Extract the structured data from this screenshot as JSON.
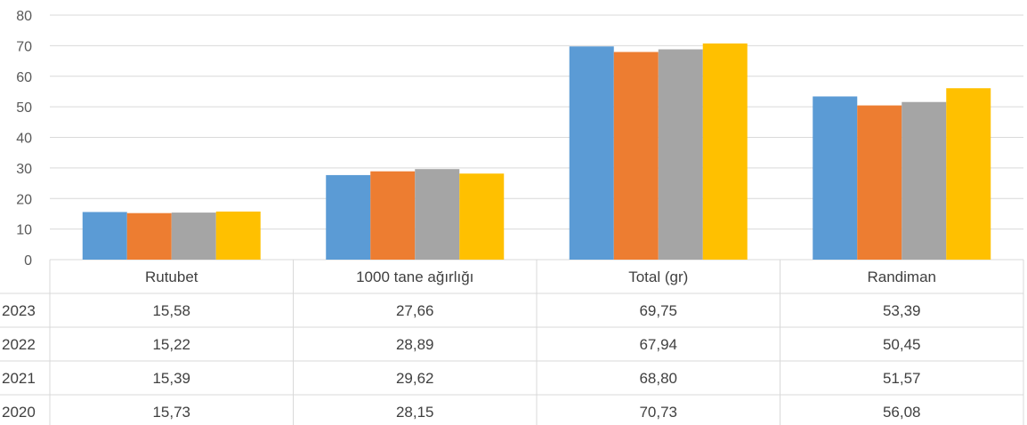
{
  "chart_data": {
    "type": "bar",
    "categories": [
      "Rutubet",
      "1000 tane ağırlığı",
      "Total (gr)",
      "Randiman"
    ],
    "series": [
      {
        "name": "2023",
        "color": "#5B9BD5",
        "values": [
          15.58,
          27.66,
          69.75,
          53.39
        ],
        "labels": [
          "15,58",
          "27,66",
          "69,75",
          "53,39"
        ]
      },
      {
        "name": "2022",
        "color": "#ED7D31",
        "values": [
          15.22,
          28.89,
          67.94,
          50.45
        ],
        "labels": [
          "15,22",
          "28,89",
          "67,94",
          "50,45"
        ]
      },
      {
        "name": "2021",
        "color": "#A5A5A5",
        "values": [
          15.39,
          29.62,
          68.8,
          51.57
        ],
        "labels": [
          "15,39",
          "29,62",
          "68,80",
          "51,57"
        ]
      },
      {
        "name": "2020",
        "color": "#FFC000",
        "values": [
          15.73,
          28.15,
          70.73,
          56.08
        ],
        "labels": [
          "15,73",
          "28,15",
          "70,73",
          "56,08"
        ]
      }
    ],
    "ylim": [
      0,
      80
    ],
    "yticks": [
      "0",
      "10",
      "20",
      "30",
      "40",
      "50",
      "60",
      "70",
      "80"
    ],
    "grid": true,
    "legend": "data table below chart"
  }
}
